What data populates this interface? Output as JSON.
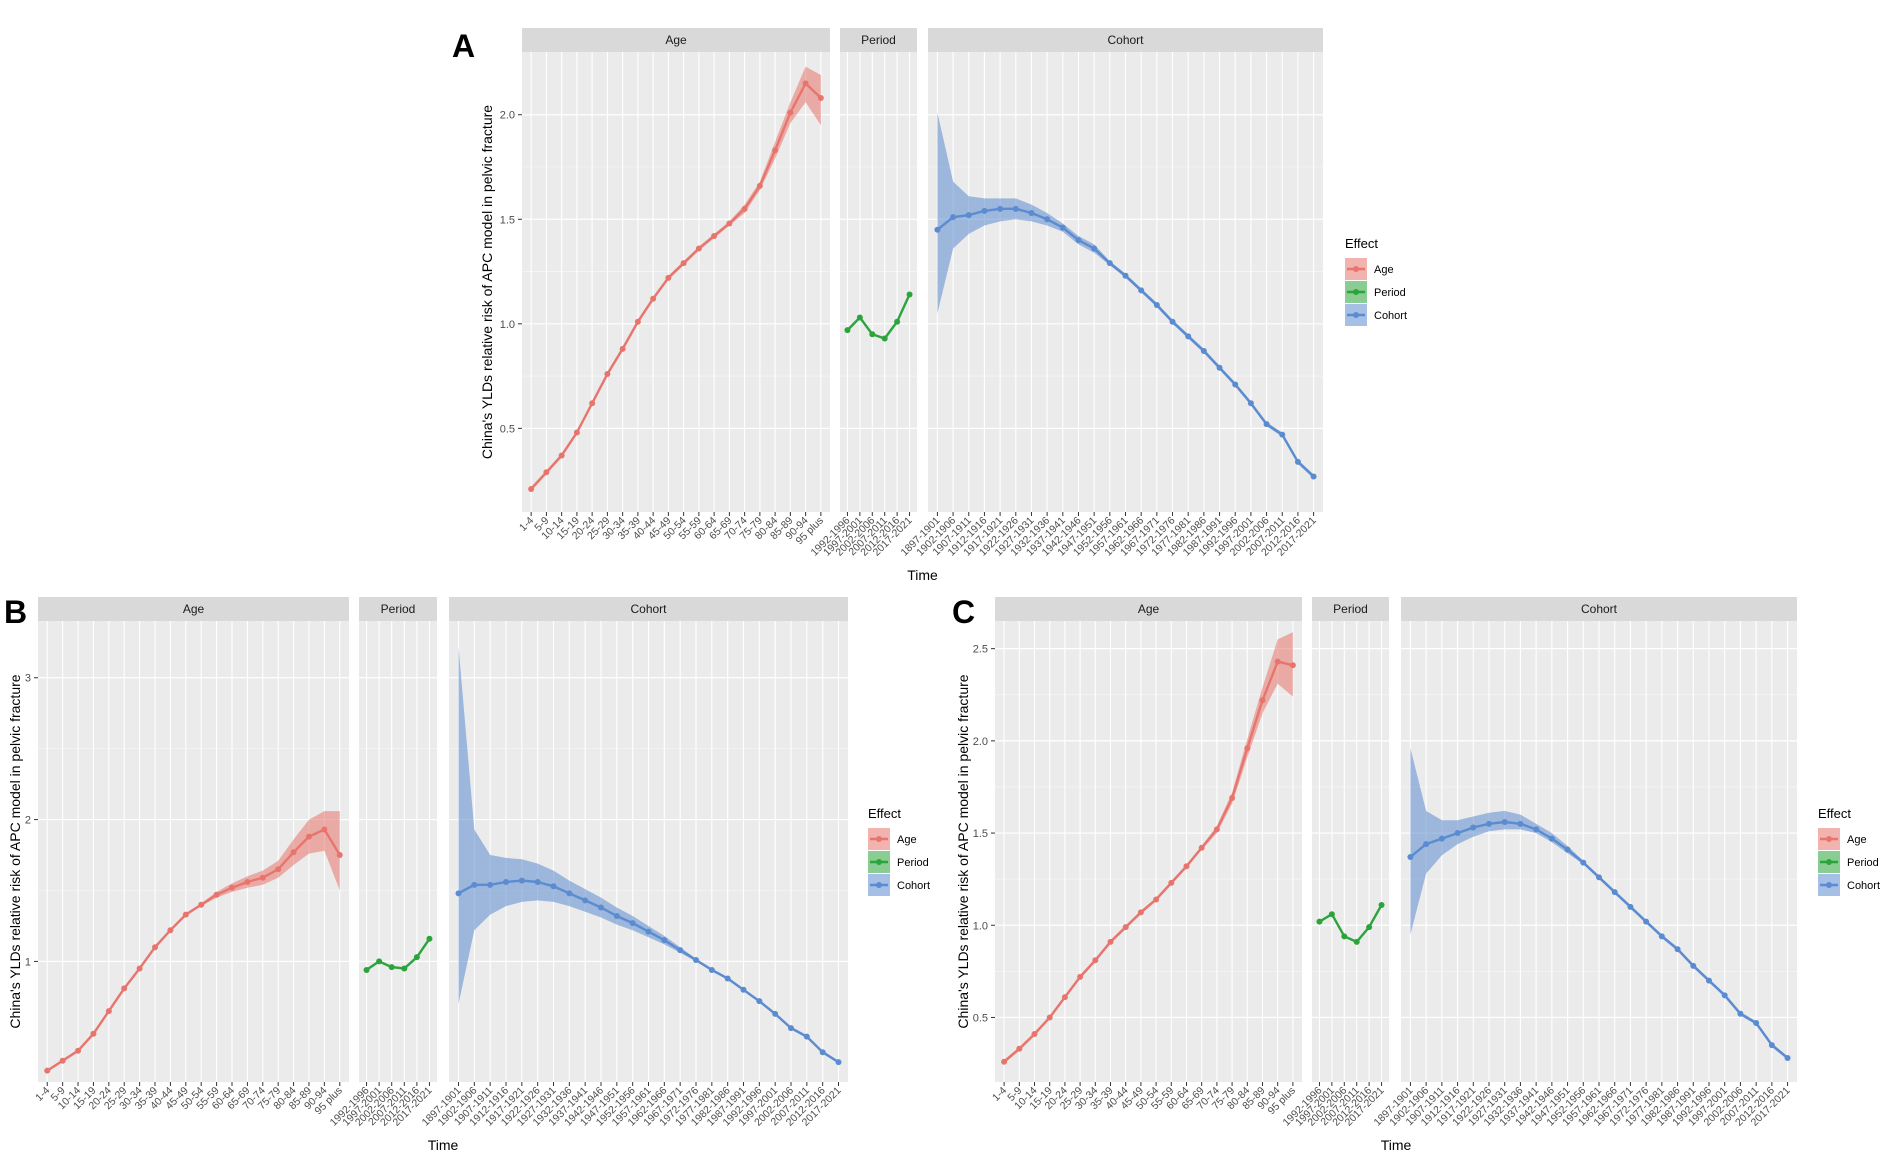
{
  "figure": {
    "ylabel": "China's YLDs relative risk of APC model in pelvic fracture",
    "xlabel": "Time",
    "legend_title": "Effect",
    "legend_items": [
      "Age",
      "Period",
      "Cohort"
    ],
    "facet_labels": [
      "Age",
      "Period",
      "Cohort"
    ],
    "colors": {
      "Age": "#e8756d",
      "Period": "#2aa43b",
      "Cohort": "#5b8bd0"
    },
    "age_groups": [
      "1-4",
      "5-9",
      "10-14",
      "15-19",
      "20-24",
      "25-29",
      "30-34",
      "35-39",
      "40-44",
      "45-49",
      "50-54",
      "55-59",
      "60-64",
      "65-69",
      "70-74",
      "75-79",
      "80-84",
      "85-89",
      "90-94",
      "95 plus"
    ],
    "periods": [
      "1992-1996",
      "1997-2001",
      "2002-2006",
      "2007-2011",
      "2012-2016",
      "2017-2021"
    ],
    "cohorts": [
      "1897-1901",
      "1902-1906",
      "1907-1911",
      "1912-1916",
      "1917-1921",
      "1922-1926",
      "1927-1931",
      "1932-1936",
      "1937-1941",
      "1942-1946",
      "1947-1951",
      "1952-1956",
      "1957-1961",
      "1962-1966",
      "1967-1971",
      "1972-1976",
      "1977-1981",
      "1982-1986",
      "1987-1991",
      "1992-1996",
      "1997-2001",
      "2002-2006",
      "2007-2011",
      "2012-2016",
      "2017-2021"
    ]
  },
  "chart_data": [
    {
      "type": "line",
      "panel": "A",
      "ylim": [
        0.1,
        2.3
      ],
      "yticks": [
        0.5,
        1.0,
        1.5,
        2.0
      ],
      "yticklabels": [
        "0.5",
        "1.0",
        "1.5",
        "2.0"
      ],
      "series": [
        {
          "name": "Age",
          "values": [
            0.21,
            0.29,
            0.37,
            0.48,
            0.62,
            0.76,
            0.88,
            1.01,
            1.12,
            1.22,
            1.29,
            1.36,
            1.42,
            1.48,
            1.55,
            1.66,
            1.83,
            2.01,
            2.15,
            2.08
          ],
          "lower": [
            0.2,
            0.28,
            0.36,
            0.47,
            0.61,
            0.75,
            0.87,
            1.0,
            1.11,
            1.21,
            1.28,
            1.35,
            1.41,
            1.47,
            1.53,
            1.64,
            1.79,
            1.96,
            2.06,
            1.95
          ],
          "upper": [
            0.22,
            0.3,
            0.38,
            0.49,
            0.63,
            0.77,
            0.89,
            1.02,
            1.13,
            1.23,
            1.3,
            1.37,
            1.43,
            1.49,
            1.57,
            1.68,
            1.87,
            2.06,
            2.23,
            2.19
          ]
        },
        {
          "name": "Period",
          "values": [
            0.97,
            1.03,
            0.95,
            0.93,
            1.01,
            1.14
          ],
          "lower": [
            0.965,
            1.025,
            0.945,
            0.925,
            1.005,
            1.135
          ],
          "upper": [
            0.975,
            1.035,
            0.955,
            0.935,
            1.015,
            1.145
          ]
        },
        {
          "name": "Cohort",
          "values": [
            1.45,
            1.51,
            1.52,
            1.54,
            1.55,
            1.55,
            1.53,
            1.5,
            1.46,
            1.4,
            1.36,
            1.29,
            1.23,
            1.16,
            1.09,
            1.01,
            0.94,
            0.87,
            0.79,
            0.71,
            0.62,
            0.52,
            0.47,
            0.34,
            0.27
          ],
          "lower": [
            1.05,
            1.36,
            1.43,
            1.47,
            1.49,
            1.5,
            1.49,
            1.47,
            1.44,
            1.38,
            1.34,
            1.28,
            1.22,
            1.15,
            1.08,
            1.0,
            0.93,
            0.86,
            0.78,
            0.7,
            0.61,
            0.51,
            0.46,
            0.33,
            0.26
          ],
          "upper": [
            2.01,
            1.68,
            1.61,
            1.6,
            1.6,
            1.6,
            1.57,
            1.53,
            1.48,
            1.42,
            1.38,
            1.3,
            1.24,
            1.17,
            1.1,
            1.02,
            0.95,
            0.88,
            0.8,
            0.72,
            0.63,
            0.53,
            0.48,
            0.35,
            0.28
          ]
        }
      ]
    },
    {
      "type": "line",
      "panel": "B",
      "ylim": [
        0.15,
        3.4
      ],
      "yticks": [
        1,
        2,
        3
      ],
      "yticklabels": [
        "1",
        "2",
        "3"
      ],
      "series": [
        {
          "name": "Age",
          "values": [
            0.23,
            0.3,
            0.37,
            0.49,
            0.65,
            0.81,
            0.95,
            1.1,
            1.22,
            1.33,
            1.4,
            1.47,
            1.52,
            1.56,
            1.59,
            1.65,
            1.77,
            1.88,
            1.93,
            1.75
          ],
          "lower": [
            0.22,
            0.29,
            0.36,
            0.48,
            0.64,
            0.8,
            0.94,
            1.09,
            1.21,
            1.32,
            1.39,
            1.45,
            1.49,
            1.52,
            1.54,
            1.59,
            1.68,
            1.76,
            1.78,
            1.5
          ],
          "upper": [
            0.24,
            0.31,
            0.38,
            0.5,
            0.66,
            0.82,
            0.96,
            1.11,
            1.23,
            1.34,
            1.41,
            1.49,
            1.55,
            1.6,
            1.64,
            1.71,
            1.86,
            2.0,
            2.06,
            2.06
          ]
        },
        {
          "name": "Period",
          "values": [
            0.94,
            1.0,
            0.96,
            0.95,
            1.03,
            1.16
          ],
          "lower": [
            0.935,
            0.995,
            0.955,
            0.945,
            1.025,
            1.155
          ],
          "upper": [
            0.945,
            1.005,
            0.965,
            0.955,
            1.035,
            1.165
          ]
        },
        {
          "name": "Cohort",
          "values": [
            1.48,
            1.54,
            1.54,
            1.56,
            1.57,
            1.56,
            1.53,
            1.48,
            1.43,
            1.38,
            1.32,
            1.27,
            1.21,
            1.15,
            1.08,
            1.01,
            0.94,
            0.88,
            0.8,
            0.72,
            0.63,
            0.53,
            0.47,
            0.36,
            0.29
          ],
          "lower": [
            0.7,
            1.22,
            1.33,
            1.39,
            1.42,
            1.43,
            1.42,
            1.39,
            1.35,
            1.31,
            1.26,
            1.22,
            1.17,
            1.12,
            1.06,
            1.0,
            0.93,
            0.87,
            0.79,
            0.71,
            0.62,
            0.52,
            0.46,
            0.35,
            0.28
          ],
          "upper": [
            3.22,
            1.93,
            1.75,
            1.73,
            1.72,
            1.69,
            1.64,
            1.57,
            1.51,
            1.45,
            1.38,
            1.32,
            1.25,
            1.18,
            1.1,
            1.02,
            0.95,
            0.89,
            0.81,
            0.73,
            0.64,
            0.54,
            0.48,
            0.37,
            0.3
          ]
        }
      ]
    },
    {
      "type": "line",
      "panel": "C",
      "ylim": [
        0.15,
        2.65
      ],
      "yticks": [
        0.5,
        1.0,
        1.5,
        2.0,
        2.5
      ],
      "yticklabels": [
        "0.5",
        "1.0",
        "1.5",
        "2.0",
        "2.5"
      ],
      "series": [
        {
          "name": "Age",
          "values": [
            0.26,
            0.33,
            0.41,
            0.5,
            0.61,
            0.72,
            0.81,
            0.91,
            0.99,
            1.07,
            1.14,
            1.23,
            1.32,
            1.42,
            1.52,
            1.69,
            1.96,
            2.22,
            2.43,
            2.41
          ],
          "lower": [
            0.25,
            0.32,
            0.4,
            0.49,
            0.6,
            0.71,
            0.8,
            0.9,
            0.98,
            1.06,
            1.13,
            1.22,
            1.31,
            1.41,
            1.5,
            1.66,
            1.91,
            2.15,
            2.31,
            2.24
          ],
          "upper": [
            0.27,
            0.34,
            0.42,
            0.51,
            0.62,
            0.73,
            0.82,
            0.92,
            1.0,
            1.08,
            1.15,
            1.24,
            1.33,
            1.43,
            1.54,
            1.72,
            2.01,
            2.29,
            2.55,
            2.59
          ]
        },
        {
          "name": "Period",
          "values": [
            1.02,
            1.06,
            0.94,
            0.91,
            0.99,
            1.11
          ],
          "lower": [
            1.015,
            1.055,
            0.935,
            0.905,
            0.985,
            1.105
          ],
          "upper": [
            1.025,
            1.065,
            0.945,
            0.915,
            0.995,
            1.115
          ]
        },
        {
          "name": "Cohort",
          "values": [
            1.37,
            1.44,
            1.47,
            1.5,
            1.53,
            1.55,
            1.56,
            1.55,
            1.52,
            1.47,
            1.41,
            1.34,
            1.26,
            1.18,
            1.1,
            1.02,
            0.94,
            0.87,
            0.78,
            0.7,
            0.62,
            0.52,
            0.47,
            0.35,
            0.28
          ],
          "lower": [
            0.95,
            1.28,
            1.38,
            1.44,
            1.48,
            1.51,
            1.52,
            1.52,
            1.5,
            1.45,
            1.39,
            1.33,
            1.25,
            1.17,
            1.09,
            1.01,
            0.93,
            0.86,
            0.77,
            0.69,
            0.61,
            0.51,
            0.46,
            0.34,
            0.27
          ],
          "upper": [
            1.96,
            1.62,
            1.57,
            1.57,
            1.59,
            1.61,
            1.62,
            1.6,
            1.55,
            1.5,
            1.43,
            1.35,
            1.27,
            1.19,
            1.11,
            1.03,
            0.95,
            0.88,
            0.79,
            0.71,
            0.63,
            0.53,
            0.48,
            0.36,
            0.29
          ]
        }
      ]
    }
  ]
}
